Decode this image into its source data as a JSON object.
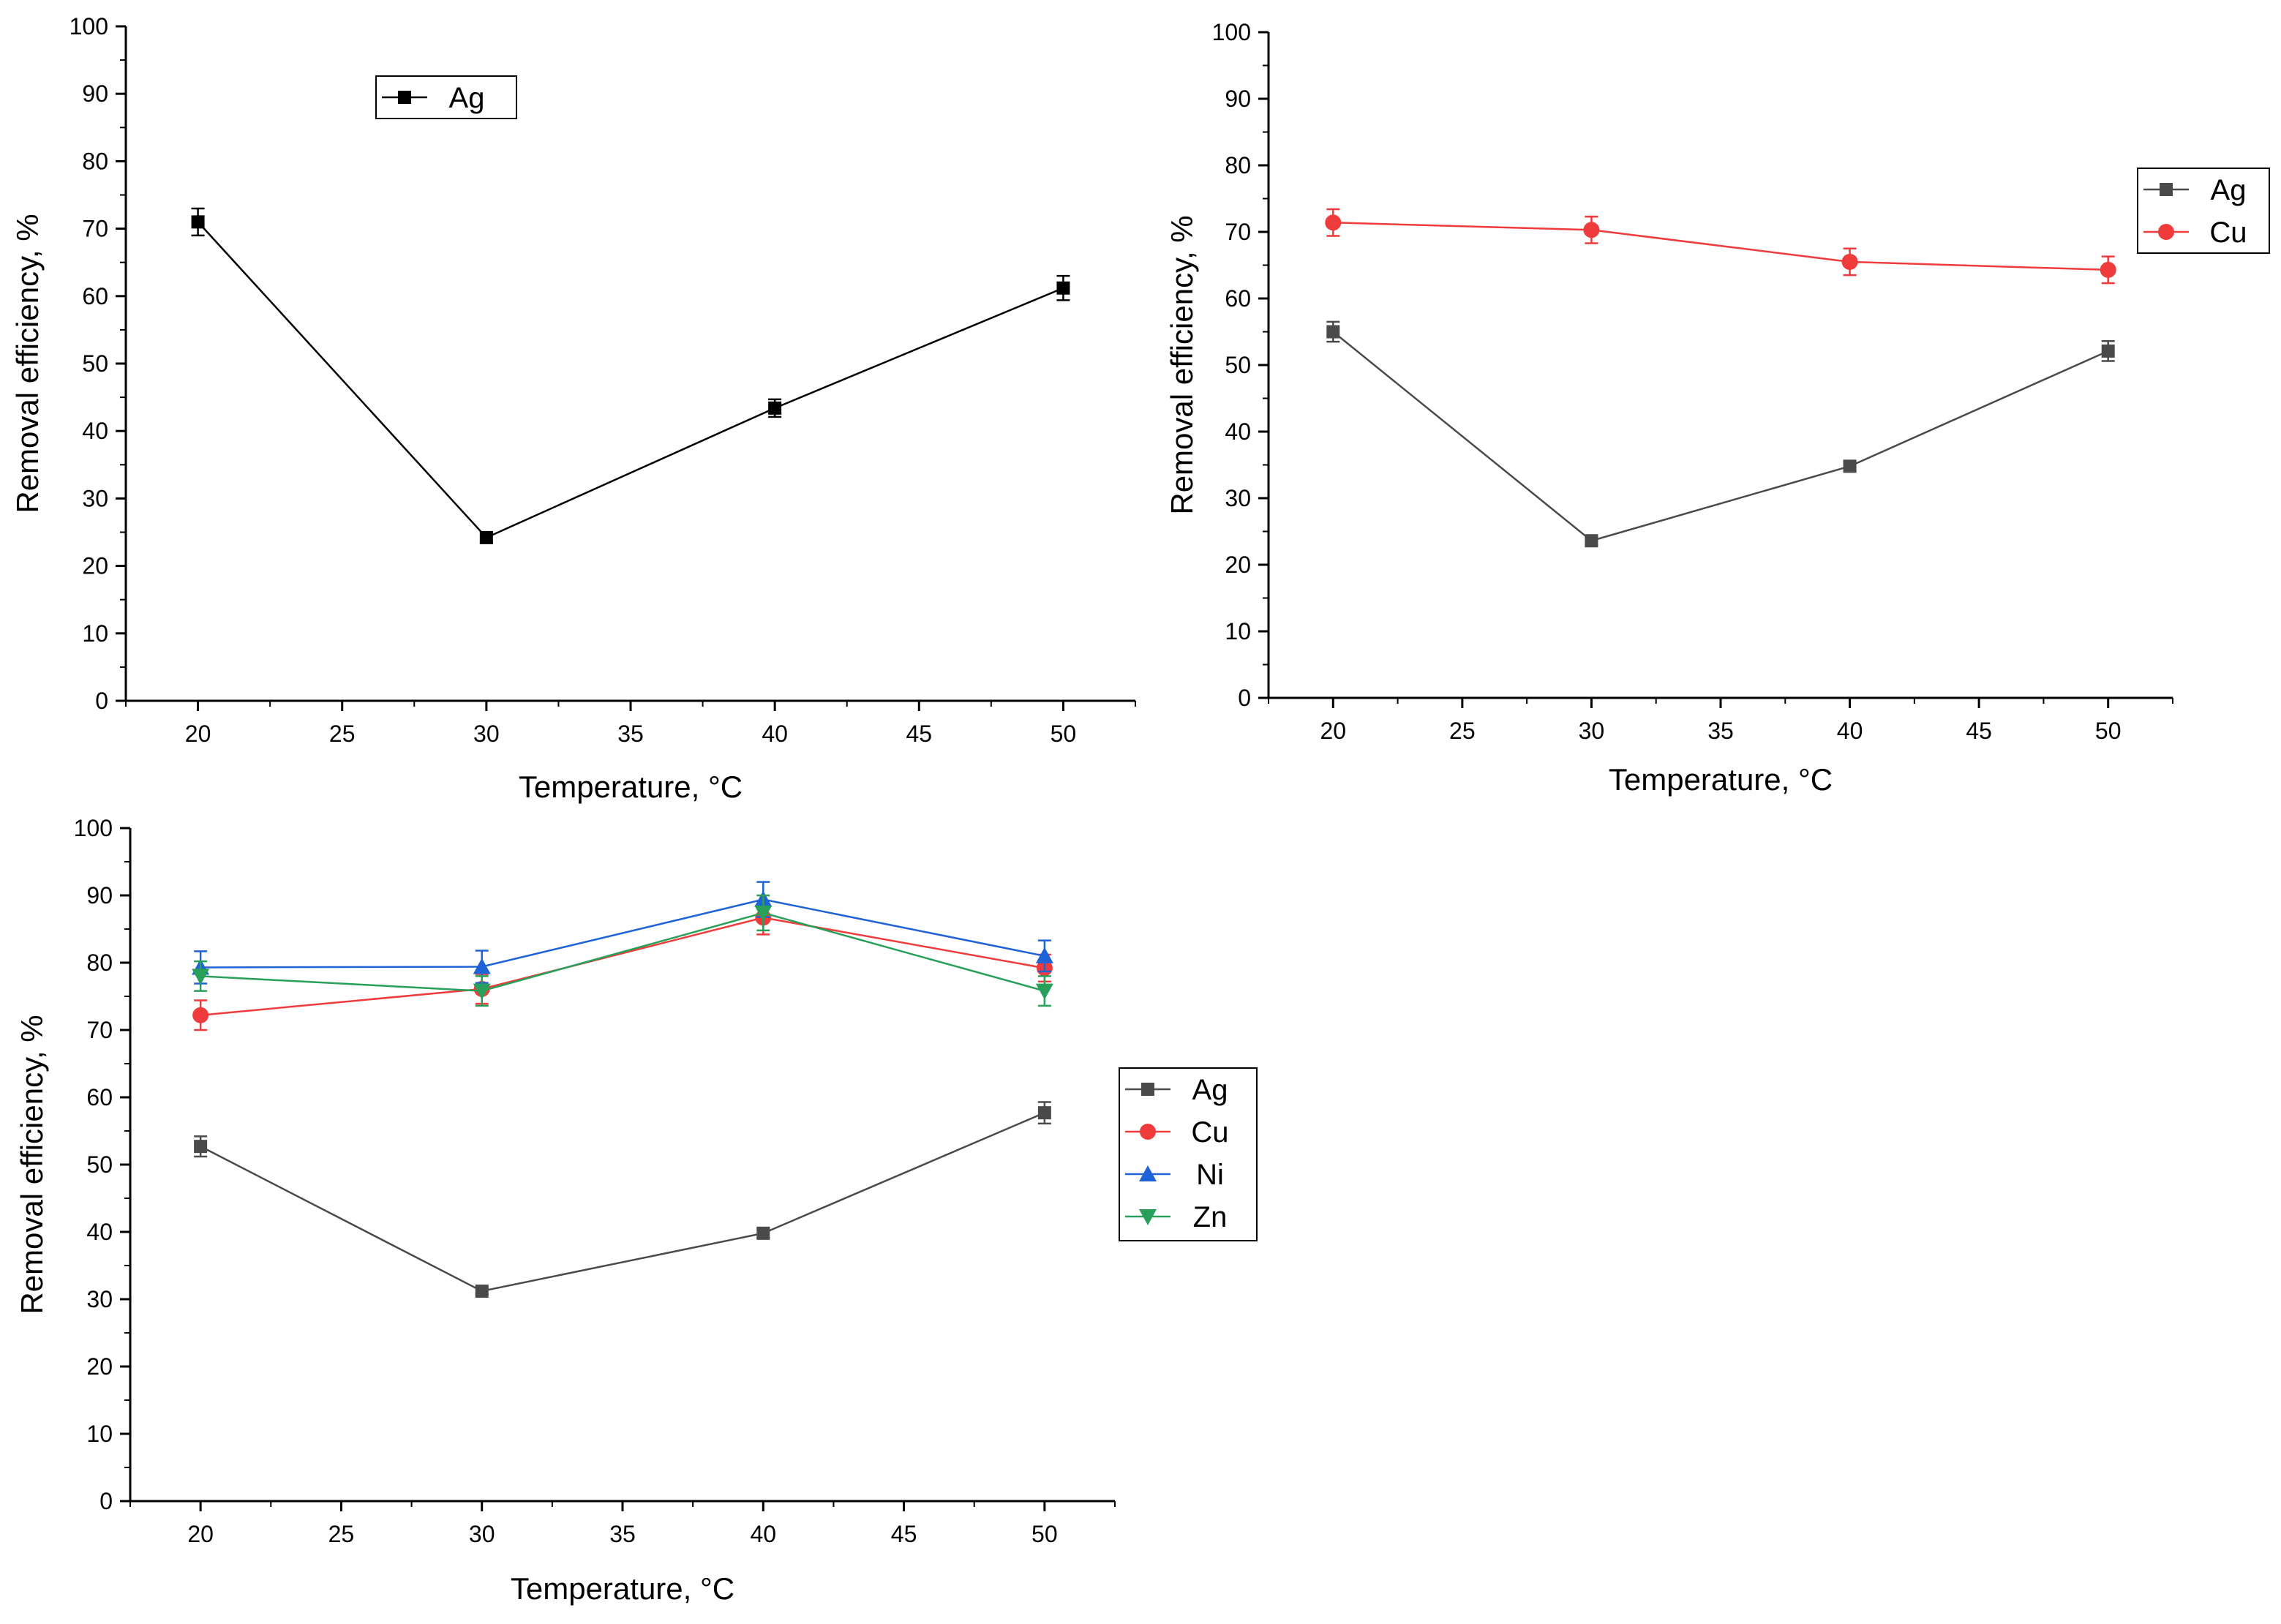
{
  "chart_data": [
    {
      "type": "line",
      "panel": "top-left",
      "xlabel": "Temperature, °C",
      "ylabel": "Removal efficiency, %",
      "xlim": [
        17.5,
        52.5
      ],
      "ylim": [
        0,
        100
      ],
      "xticks": [
        20,
        25,
        30,
        35,
        40,
        45,
        50
      ],
      "yticks": [
        0,
        10,
        20,
        30,
        40,
        50,
        60,
        70,
        80,
        90,
        100
      ],
      "legend_position": "top-left",
      "series": [
        {
          "name": "Ag",
          "color": "#000000",
          "marker": "square",
          "x": [
            20,
            30,
            40,
            50
          ],
          "y": [
            71,
            24.2,
            43.4,
            61.2
          ],
          "err": [
            2,
            0.8,
            1.3,
            1.8
          ]
        }
      ]
    },
    {
      "type": "line",
      "panel": "top-right",
      "xlabel": "Temperature, °C",
      "ylabel": "Removal efficiency, %",
      "xlim": [
        17.5,
        52.5
      ],
      "ylim": [
        0,
        100
      ],
      "xticks": [
        20,
        25,
        30,
        35,
        40,
        45,
        50
      ],
      "yticks": [
        0,
        10,
        20,
        30,
        40,
        50,
        60,
        70,
        80,
        90,
        100
      ],
      "legend_position": "top-right",
      "series": [
        {
          "name": "Ag",
          "color": "#4a4a4a",
          "marker": "square",
          "x": [
            20,
            30,
            40,
            50
          ],
          "y": [
            55,
            23.6,
            34.8,
            52.1
          ],
          "err": [
            1.5,
            0.6,
            0.7,
            1.5
          ]
        },
        {
          "name": "Cu",
          "color": "#ef3b3b",
          "marker": "circle",
          "x": [
            20,
            30,
            40,
            50
          ],
          "y": [
            71.4,
            70.3,
            65.5,
            64.3
          ],
          "err": [
            2,
            2,
            2,
            2
          ]
        }
      ]
    },
    {
      "type": "line",
      "panel": "bottom-left",
      "xlabel": "Temperature, °C",
      "ylabel": "Removal efficiency, %",
      "xlim": [
        17.5,
        52.5
      ],
      "ylim": [
        0,
        100
      ],
      "xticks": [
        20,
        25,
        30,
        35,
        40,
        45,
        50
      ],
      "yticks": [
        0,
        10,
        20,
        30,
        40,
        50,
        60,
        70,
        80,
        90,
        100
      ],
      "legend_position": "center-right",
      "series": [
        {
          "name": "Ag",
          "color": "#4a4a4a",
          "marker": "square",
          "x": [
            20,
            30,
            40,
            50
          ],
          "y": [
            52.7,
            31.2,
            39.8,
            57.7
          ],
          "err": [
            1.5,
            0.5,
            0.7,
            1.6
          ]
        },
        {
          "name": "Cu",
          "color": "#ef3b3b",
          "marker": "circle",
          "x": [
            20,
            30,
            40,
            50
          ],
          "y": [
            72.2,
            76.1,
            86.7,
            79.2
          ],
          "err": [
            2.2,
            2.2,
            2.5,
            2
          ]
        },
        {
          "name": "Ni",
          "color": "#1f63d6",
          "marker": "triangle-up",
          "x": [
            20,
            30,
            40,
            50
          ],
          "y": [
            79.3,
            79.4,
            89.4,
            81
          ],
          "err": [
            2.4,
            2.4,
            2.6,
            2.3
          ]
        },
        {
          "name": "Zn",
          "color": "#28a05a",
          "marker": "triangle-down",
          "x": [
            20,
            30,
            40,
            50
          ],
          "y": [
            78,
            75.8,
            87.4,
            75.8
          ],
          "err": [
            2.2,
            2.2,
            2.6,
            2.2
          ]
        }
      ]
    }
  ]
}
